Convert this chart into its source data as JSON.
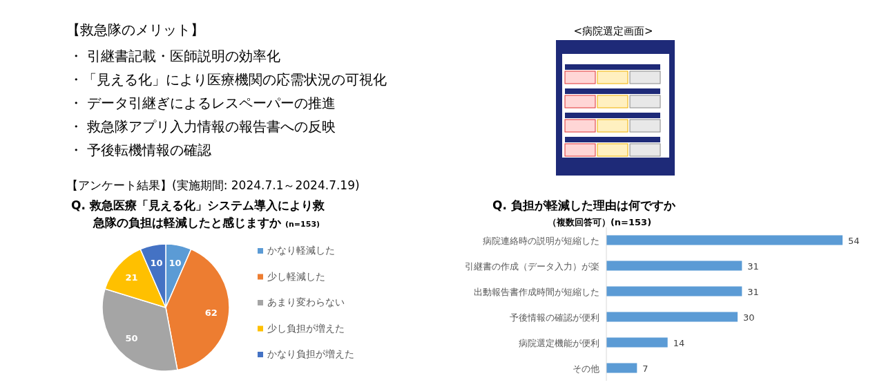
{
  "chart_data": [
    {
      "type": "other",
      "title": "【救急隊のメリット】",
      "annotations": [
        "・ 引継書記載・医師説明の効率化",
        "・「見える化」により医療機関の応需状況の可視化",
        "・ データ引継ぎによるレスペーパーの推進",
        "・ 救急隊アプリ入力情報の報告書への反映",
        "・ 予後転機情報の確認",
        "<病院選定画面>",
        "【アンケート結果】(実施期間: 2024.7.1～2024.7.19)"
      ]
    },
    {
      "type": "pie",
      "title": "Q.  救急医療「見える化」システム導入により救急隊の負担は軽減したと感じますか",
      "subtitle": "(n=153)",
      "categories": [
        "かなり軽減した",
        "少し軽減した",
        "あまり変わらない",
        "少し負担が増えた",
        "かなり負担が増えた"
      ],
      "values": [
        10,
        62,
        50,
        21,
        10
      ],
      "colors": [
        "#5b9bd5",
        "#ed7d31",
        "#a5a5a5",
        "#ffc000",
        "#4472c4"
      ],
      "data_labels": true,
      "legend": "right"
    },
    {
      "type": "bar",
      "orientation": "horizontal",
      "title": "Q.  負担が軽減した理由は何ですか",
      "subtitle": "（複数回答可）(n=153)",
      "categories": [
        "病院連絡時の説明が短縮した",
        "引継書の作成（データ入力）が楽",
        "出動報告書作成時間が短縮した",
        "予後情報の確認が便利",
        "病院選定機能が便利",
        "その他"
      ],
      "values": [
        54,
        31,
        31,
        30,
        14,
        7
      ],
      "color": "#5b9bd5",
      "data_labels": true
    }
  ]
}
